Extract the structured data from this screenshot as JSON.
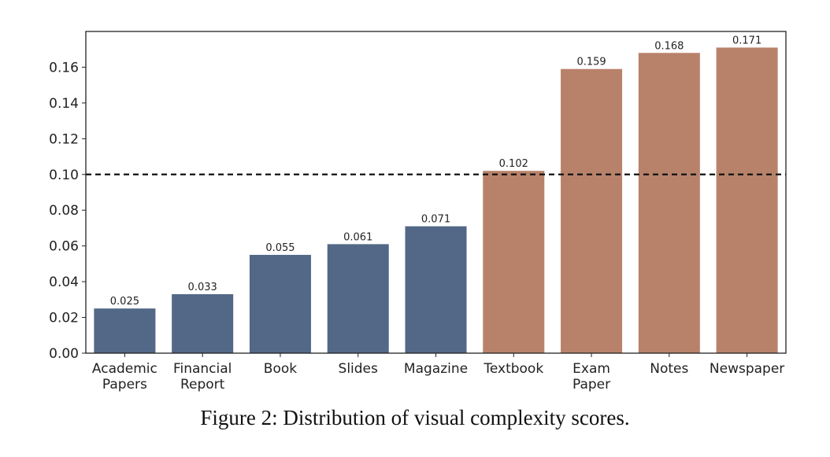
{
  "caption": "Figure 2: Distribution of visual complexity scores.",
  "colors": {
    "low": "#536887",
    "high": "#b8826a",
    "threshold": "#111111",
    "axis": "#222222"
  },
  "chart_data": {
    "type": "bar",
    "categories": [
      [
        "Academic",
        "Papers"
      ],
      [
        "Financial",
        "Report"
      ],
      [
        "Book"
      ],
      [
        "Slides"
      ],
      [
        "Magazine"
      ],
      [
        "Textbook"
      ],
      [
        "Exam",
        "Paper"
      ],
      [
        "Notes"
      ],
      [
        "Newspaper"
      ]
    ],
    "values": [
      0.025,
      0.033,
      0.055,
      0.061,
      0.071,
      0.102,
      0.159,
      0.168,
      0.171
    ],
    "value_labels": [
      "0.025",
      "0.033",
      "0.055",
      "0.061",
      "0.071",
      "0.102",
      "0.159",
      "0.168",
      "0.171"
    ],
    "bar_groups": [
      "low",
      "low",
      "low",
      "low",
      "low",
      "high",
      "high",
      "high",
      "high"
    ],
    "ylim": [
      0,
      0.18
    ],
    "yticks": [
      0.0,
      0.02,
      0.04,
      0.06,
      0.08,
      0.1,
      0.12,
      0.14,
      0.16
    ],
    "ytick_labels": [
      "0.00",
      "0.02",
      "0.04",
      "0.06",
      "0.08",
      "0.10",
      "0.12",
      "0.14",
      "0.16"
    ],
    "threshold": 0.1,
    "threshold_style": "dashed",
    "grid": false,
    "xlabel": "",
    "ylabel": ""
  }
}
